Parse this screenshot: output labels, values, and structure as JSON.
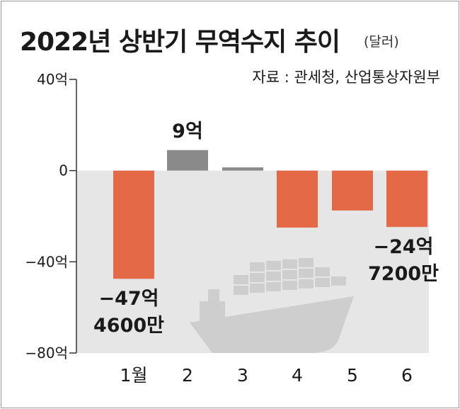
{
  "header": {
    "title": "2022년 상반기 무역수지 추이",
    "unit": "(달러)",
    "source": "자료 : 관세청, 산업통상자원부"
  },
  "colors": {
    "negative": "#e46a47",
    "positive": "#8a8a8a",
    "plot_background": "#e6e6e6",
    "ship": "#cecece"
  },
  "chart_data": {
    "type": "bar",
    "title": "2022년 상반기 무역수지 추이",
    "unit": "달러",
    "categories": [
      "1월",
      "2",
      "3",
      "4",
      "5",
      "6"
    ],
    "values": [
      -47.46,
      9,
      1.4,
      -25,
      -17.5,
      -24.72
    ],
    "ylim": [
      -80,
      40
    ],
    "yticks": [
      40,
      0,
      -40,
      -80
    ],
    "ytick_labels": [
      "40억",
      "0",
      "−40억",
      "−80억"
    ],
    "grid": false,
    "annotations": [
      {
        "category_index": 0,
        "lines": [
          "−47억",
          "4600만"
        ]
      },
      {
        "category_index": 1,
        "lines": [
          "9억"
        ]
      },
      {
        "category_index": 5,
        "lines": [
          "−24억",
          "7200만"
        ]
      }
    ]
  }
}
